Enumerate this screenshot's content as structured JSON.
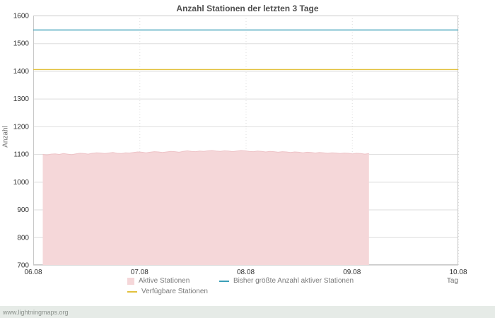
{
  "footer": {
    "text": "www.lightningmaps.org"
  },
  "chart_data": {
    "type": "area",
    "title": "Anzahl Stationen der letzten 3 Tage",
    "xlabel": "Tag",
    "ylabel": "Anzahl",
    "ylim": [
      700,
      1600
    ],
    "yticks": [
      700,
      800,
      900,
      1000,
      1100,
      1200,
      1300,
      1400,
      1500,
      1600
    ],
    "xticks": [
      "06.08",
      "07.08",
      "08.08",
      "09.08",
      "10.08"
    ],
    "grid": true,
    "legend_position": "bottom",
    "colors": {
      "grid": "#dddddd",
      "axis": "#c8c8c8",
      "background": "#ffffff",
      "footer_bg": "#e6ebe7"
    },
    "series": [
      {
        "key": "active-stations",
        "name": "Aktive Stationen",
        "type": "area",
        "fill_color": "#f5d7d9",
        "edge_color": "#eec3c7",
        "x_range_days": [
          0.09,
          3.16
        ],
        "values": [
          1099,
          1097,
          1100,
          1101,
          1099,
          1102,
          1100,
          1098,
          1101,
          1103,
          1102,
          1100,
          1103,
          1105,
          1104,
          1102,
          1104,
          1106,
          1103,
          1102,
          1105,
          1104,
          1106,
          1108,
          1107,
          1105,
          1107,
          1109,
          1108,
          1106,
          1108,
          1110,
          1109,
          1107,
          1110,
          1112,
          1110,
          1109,
          1111,
          1110,
          1112,
          1113,
          1111,
          1110,
          1112,
          1111,
          1109,
          1111,
          1113,
          1112,
          1110,
          1109,
          1111,
          1110,
          1108,
          1110,
          1109,
          1107,
          1109,
          1108,
          1106,
          1108,
          1107,
          1105,
          1107,
          1106,
          1104,
          1106,
          1105,
          1103,
          1105,
          1104,
          1102,
          1104,
          1103,
          1101,
          1103,
          1102,
          1100,
          1102
        ]
      },
      {
        "key": "max-active-stations",
        "name": "Bisher größte Anzahl aktiver Stationen",
        "type": "hline",
        "color": "#3b9fb8",
        "value": 1548
      },
      {
        "key": "available-stations",
        "name": "Verfügbare Stationen",
        "type": "hline",
        "color": "#e2c13d",
        "value": 1405
      }
    ]
  }
}
